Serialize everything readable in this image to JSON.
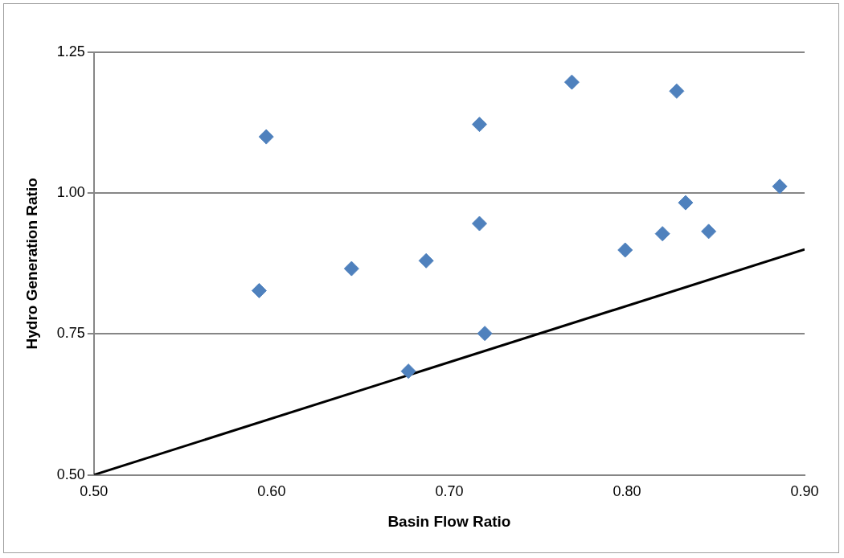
{
  "chart_data": {
    "type": "scatter",
    "xlabel": "Basin Flow Ratio",
    "ylabel": "Hydro Generation Ratio",
    "xlim": [
      0.5,
      0.9
    ],
    "ylim": [
      0.5,
      1.25
    ],
    "xticks": [
      {
        "value": 0.5,
        "label": "0.50"
      },
      {
        "value": 0.6,
        "label": "0.60"
      },
      {
        "value": 0.7,
        "label": "0.70"
      },
      {
        "value": 0.8,
        "label": "0.80"
      },
      {
        "value": 0.9,
        "label": "0.90"
      }
    ],
    "yticks": [
      {
        "value": 0.5,
        "label": "0.50"
      },
      {
        "value": 0.75,
        "label": "0.75"
      },
      {
        "value": 1.0,
        "label": "1.00"
      },
      {
        "value": 1.25,
        "label": "1.25"
      }
    ],
    "grid": "y",
    "legend": false,
    "marker": "diamond",
    "series": [
      {
        "color": "#4f81bd",
        "x": [
          0.597,
          0.593,
          0.645,
          0.687,
          0.677,
          0.717,
          0.717,
          0.72,
          0.769,
          0.799,
          0.82,
          0.828,
          0.833,
          0.846,
          0.886
        ],
        "values": [
          1.1,
          0.827,
          0.866,
          0.88,
          0.684,
          1.122,
          0.946,
          0.751,
          1.197,
          0.899,
          0.928,
          1.181,
          0.983,
          0.932,
          1.012
        ]
      },
      {
        "type": "line",
        "color": "#000000",
        "marker": "none",
        "x": [
          0.5,
          0.9
        ],
        "values": [
          0.5,
          0.9
        ]
      }
    ]
  }
}
